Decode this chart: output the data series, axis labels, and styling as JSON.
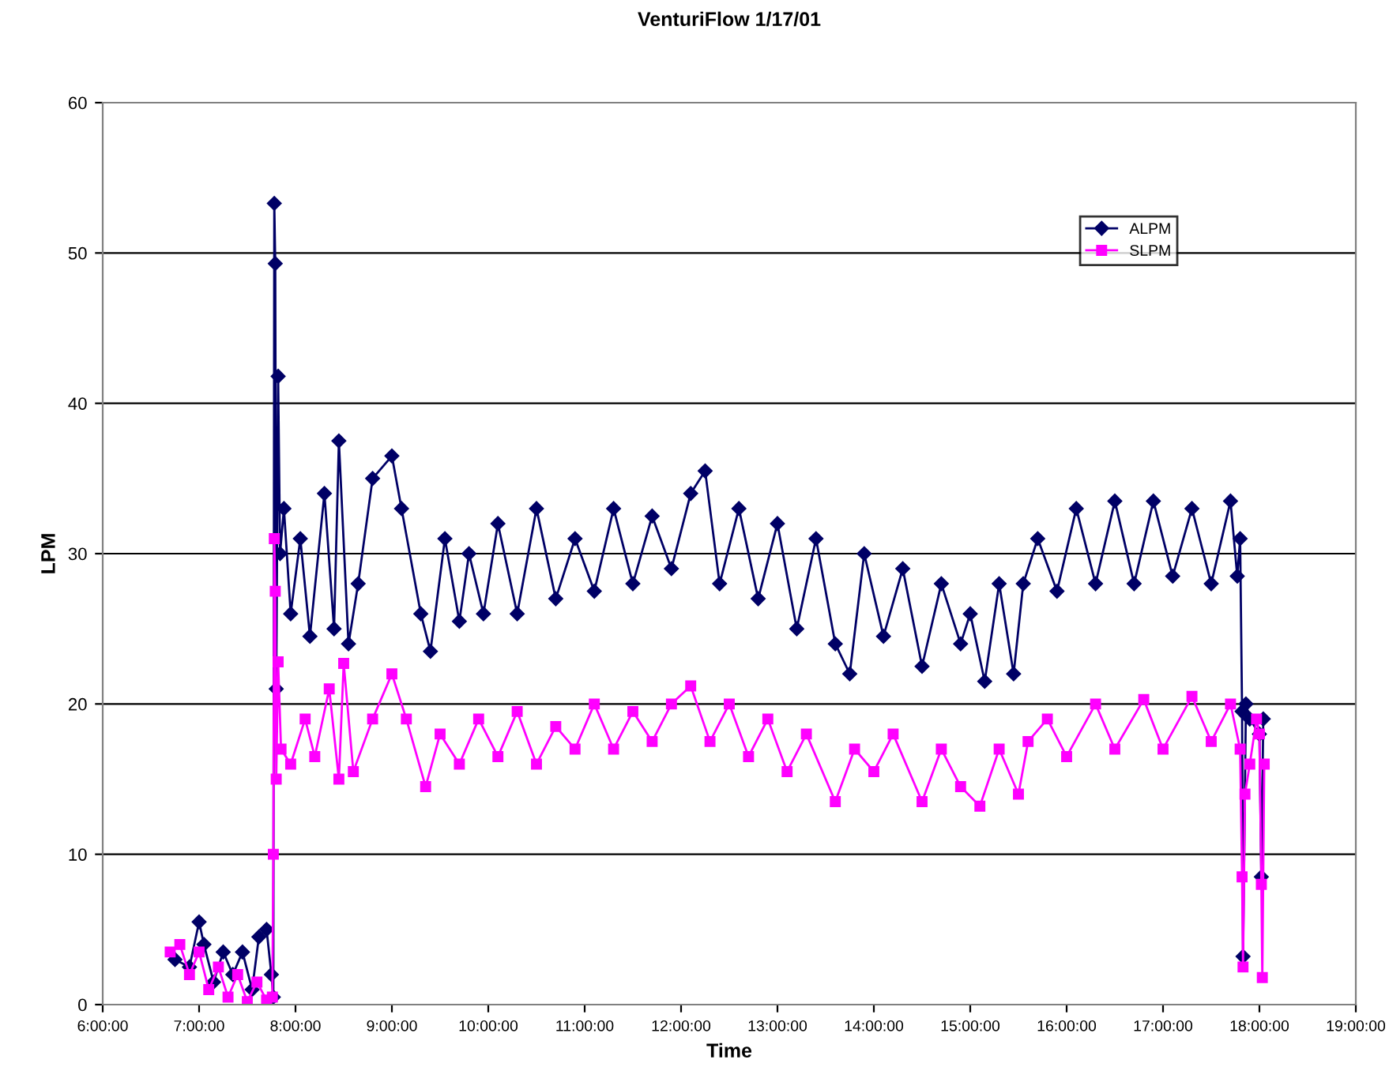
{
  "chart_data": {
    "type": "line",
    "title": "VenturiFlow 1/17/01",
    "xlabel": "Time",
    "ylabel": "LPM",
    "xlim": [
      6,
      19
    ],
    "ylim": [
      0,
      60
    ],
    "yticks": [
      0,
      10,
      20,
      30,
      40,
      50,
      60
    ],
    "xticks": [
      {
        "value": 6,
        "label": "6:00:00"
      },
      {
        "value": 7,
        "label": "7:00:00"
      },
      {
        "value": 8,
        "label": "8:00:00"
      },
      {
        "value": 9,
        "label": "9:00:00"
      },
      {
        "value": 10,
        "label": "10:00:00"
      },
      {
        "value": 11,
        "label": "11:00:00"
      },
      {
        "value": 12,
        "label": "12:00:00"
      },
      {
        "value": 13,
        "label": "13:00:00"
      },
      {
        "value": 14,
        "label": "14:00:00"
      },
      {
        "value": 15,
        "label": "15:00:00"
      },
      {
        "value": 16,
        "label": "16:00:00"
      },
      {
        "value": 17,
        "label": "17:00:00"
      },
      {
        "value": 18,
        "label": "18:00:00"
      },
      {
        "value": 19,
        "label": "19:00:00"
      }
    ],
    "grid": "y",
    "legend": "top right",
    "line_style": "solid",
    "series": [
      {
        "name": "ALPM",
        "color": "#000066",
        "marker": "diamond",
        "x": [
          6.75,
          6.9,
          7.0,
          7.05,
          7.15,
          7.25,
          7.35,
          7.45,
          7.55,
          7.62,
          7.7,
          7.75,
          7.77,
          7.78,
          7.79,
          7.8,
          7.82,
          7.84,
          7.88,
          7.95,
          8.05,
          8.15,
          8.3,
          8.4,
          8.45,
          8.55,
          8.65,
          8.8,
          9.0,
          9.1,
          9.3,
          9.4,
          9.55,
          9.7,
          9.8,
          9.95,
          10.1,
          10.3,
          10.5,
          10.7,
          10.9,
          11.1,
          11.3,
          11.5,
          11.7,
          11.9,
          12.1,
          12.25,
          12.4,
          12.6,
          12.8,
          13.0,
          13.2,
          13.4,
          13.6,
          13.75,
          13.9,
          14.1,
          14.3,
          14.5,
          14.7,
          14.9,
          15.0,
          15.15,
          15.3,
          15.45,
          15.55,
          15.7,
          15.9,
          16.1,
          16.3,
          16.5,
          16.7,
          16.9,
          17.1,
          17.3,
          17.5,
          17.7,
          17.77,
          17.8,
          17.82,
          17.83,
          17.86,
          17.9,
          18.0,
          18.02,
          18.04
        ],
        "values": [
          3,
          2.5,
          5.5,
          4,
          1.5,
          3.5,
          2,
          3.5,
          1,
          4.5,
          5,
          2,
          0.5,
          53.3,
          49.3,
          21,
          41.8,
          30,
          33,
          26,
          31,
          24.5,
          34,
          25,
          37.5,
          24,
          28,
          35,
          36.5,
          33,
          26,
          23.5,
          31,
          25.5,
          30,
          26,
          32,
          26,
          33,
          27,
          31,
          27.5,
          33,
          28,
          32.5,
          29,
          34,
          35.5,
          28,
          33,
          27,
          32,
          25,
          31,
          24,
          22,
          30,
          24.5,
          29,
          22.5,
          28,
          24,
          26,
          21.5,
          28,
          22,
          28,
          31,
          27.5,
          33,
          28,
          33.5,
          28,
          33.5,
          28.5,
          33,
          28,
          33.5,
          28.5,
          31,
          19.5,
          3.2,
          20,
          19,
          18,
          8.5,
          19
        ]
      },
      {
        "name": "SLPM",
        "color": "#ff00ff",
        "marker": "square",
        "x": [
          6.7,
          6.8,
          6.9,
          7.0,
          7.1,
          7.2,
          7.3,
          7.4,
          7.5,
          7.6,
          7.7,
          7.76,
          7.77,
          7.78,
          7.79,
          7.8,
          7.82,
          7.85,
          7.95,
          8.1,
          8.2,
          8.35,
          8.45,
          8.5,
          8.6,
          8.8,
          9.0,
          9.15,
          9.35,
          9.5,
          9.7,
          9.9,
          10.1,
          10.3,
          10.5,
          10.7,
          10.9,
          11.1,
          11.3,
          11.5,
          11.7,
          11.9,
          12.1,
          12.3,
          12.5,
          12.7,
          12.9,
          13.1,
          13.3,
          13.6,
          13.8,
          14.0,
          14.2,
          14.5,
          14.7,
          14.9,
          15.1,
          15.3,
          15.5,
          15.6,
          15.8,
          16.0,
          16.3,
          16.5,
          16.8,
          17.0,
          17.3,
          17.5,
          17.7,
          17.8,
          17.82,
          17.83,
          17.85,
          17.9,
          17.97,
          18.0,
          18.02,
          18.03,
          18.05
        ],
        "values": [
          3.5,
          4,
          2,
          3.5,
          1,
          2.5,
          0.5,
          2,
          0.2,
          1.5,
          0.3,
          0.5,
          10,
          31,
          27.5,
          15,
          22.8,
          17,
          16,
          19,
          16.5,
          21,
          15,
          22.7,
          15.5,
          19,
          22,
          19,
          14.5,
          18,
          16,
          19,
          16.5,
          19.5,
          16,
          18.5,
          17,
          20,
          17,
          19.5,
          17.5,
          20,
          21.2,
          17.5,
          20,
          16.5,
          19,
          15.5,
          18,
          13.5,
          17,
          15.5,
          18,
          13.5,
          17,
          14.5,
          13.2,
          17,
          14,
          17.5,
          19,
          16.5,
          20,
          17,
          20.3,
          17,
          20.5,
          17.5,
          20,
          17,
          8.5,
          2.5,
          14,
          16,
          19,
          18,
          8,
          1.8,
          16
        ]
      }
    ]
  }
}
